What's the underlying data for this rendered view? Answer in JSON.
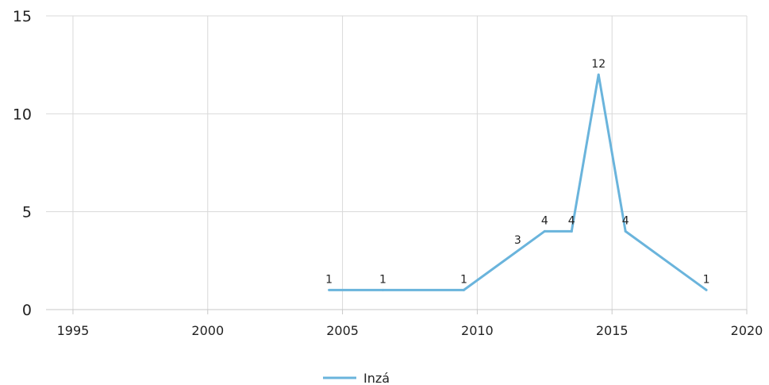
{
  "chart_data": {
    "type": "line",
    "title": "",
    "xlabel": "",
    "ylabel": "",
    "xlim": [
      1994,
      2020
    ],
    "ylim": [
      0,
      15
    ],
    "x_ticks": [
      "1995",
      "2000",
      "2005",
      "2010",
      "2015",
      "2020"
    ],
    "y_ticks": [
      "0",
      "5",
      "10",
      "15"
    ],
    "grid": true,
    "legend_position": "bottom",
    "series": [
      {
        "name": "Inzá",
        "color": "#6ab4dc",
        "x": [
          2004.5,
          2006.5,
          2009.5,
          2012.5,
          2013.5,
          2014.5,
          2015.5,
          2018.5
        ],
        "y": [
          1,
          1,
          1,
          4,
          4,
          12,
          4,
          1
        ],
        "labels": [
          "1",
          "1",
          "1",
          "4",
          "4",
          "12",
          "4",
          "1"
        ]
      }
    ],
    "extra_labels": [
      {
        "x": 2011.5,
        "y": 3,
        "text": "3"
      }
    ]
  }
}
